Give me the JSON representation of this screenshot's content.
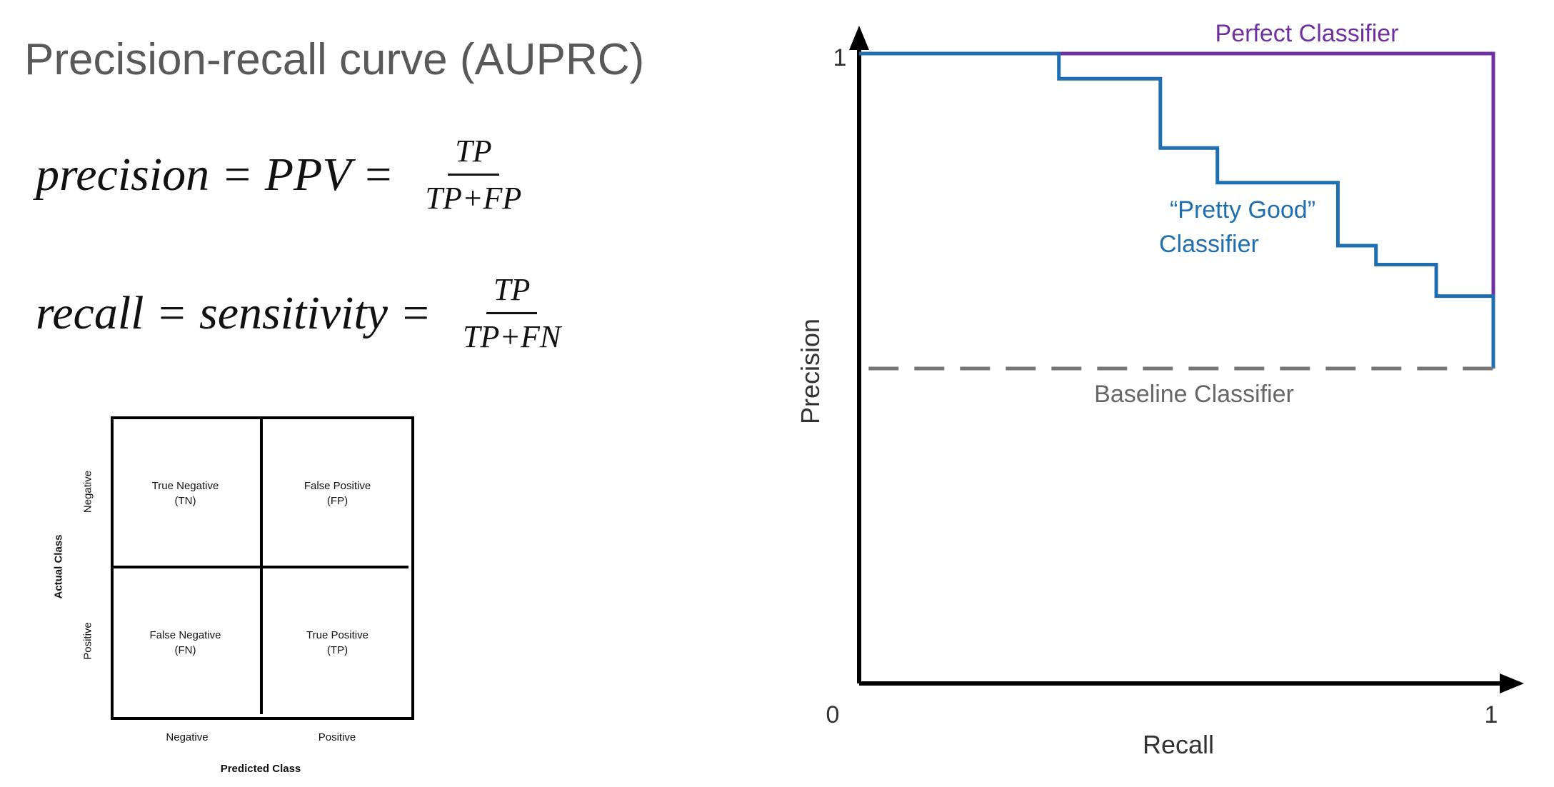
{
  "title": "Precision-recall curve (AUPRC)",
  "formulas": {
    "precision": {
      "lhs": "precision = PPV =",
      "numerator": "TP",
      "denominator": "TP+FP"
    },
    "recall": {
      "lhs": "recall = sensitivity =",
      "numerator": "TP",
      "denominator": "TP+FN"
    }
  },
  "confusion_matrix": {
    "cells": {
      "tn": {
        "line1": "True Negative",
        "line2": "(TN)"
      },
      "fp": {
        "line1": "False Positive",
        "line2": "(FP)"
      },
      "fn": {
        "line1": "False Negative",
        "line2": "(FN)"
      },
      "tp": {
        "line1": "True Positive",
        "line2": "(TP)"
      }
    },
    "row_labels": [
      "Negative",
      "Positive"
    ],
    "col_labels": [
      "Negative",
      "Positive"
    ],
    "y_axis_title": "Actual Class",
    "x_axis_title": "Predicted Class"
  },
  "chart_data": {
    "type": "line",
    "xlabel": "Recall",
    "ylabel": "Precision",
    "xlim": [
      0,
      1
    ],
    "ylim": [
      0,
      1
    ],
    "x_ticks": [
      "0",
      "1"
    ],
    "y_ticks": [
      "1"
    ],
    "grid": false,
    "series": [
      {
        "name": "Perfect Classifier",
        "color": "#7030a0",
        "style": "solid",
        "x": [
          0,
          1,
          1
        ],
        "y": [
          1,
          1,
          0.5
        ]
      },
      {
        "name_lines": [
          "“Pretty Good”",
          "Classifier"
        ],
        "color": "#1f6fb0",
        "style": "step",
        "x": [
          0,
          0.315,
          0.315,
          0.475,
          0.475,
          0.565,
          0.565,
          0.755,
          0.755,
          0.815,
          0.815,
          0.91,
          0.91,
          1.0,
          1.0
        ],
        "y": [
          1.0,
          1.0,
          0.96,
          0.96,
          0.85,
          0.85,
          0.795,
          0.795,
          0.695,
          0.695,
          0.665,
          0.665,
          0.615,
          0.615,
          0.5
        ]
      },
      {
        "name": "Baseline Classifier",
        "color": "#777777",
        "style": "dashed",
        "x": [
          0.015,
          1.0
        ],
        "y": [
          0.5,
          0.5
        ]
      }
    ]
  }
}
